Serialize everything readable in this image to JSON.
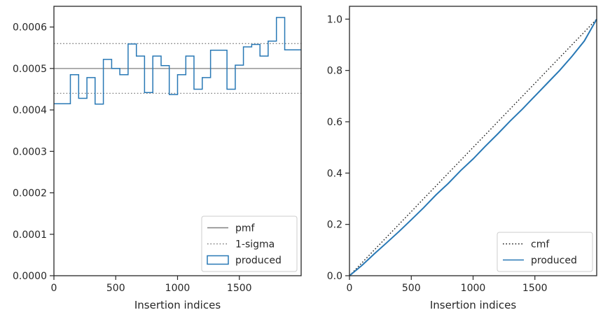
{
  "chart_data": [
    {
      "type": "line",
      "title": "",
      "xlabel": "Insertion indices",
      "ylabel": "",
      "xlim": [
        0,
        2000
      ],
      "ylim": [
        0,
        0.00065
      ],
      "xticks": [
        0,
        500,
        1000,
        1500
      ],
      "xtick_labels": [
        "0",
        "500",
        "1000",
        "1500"
      ],
      "yticks": [
        0.0,
        0.0001,
        0.0002,
        0.0003,
        0.0004,
        0.0005,
        0.0006
      ],
      "ytick_labels": [
        "0.0000",
        "0.0001",
        "0.0002",
        "0.0003",
        "0.0004",
        "0.0005",
        "0.0006"
      ],
      "grid": false,
      "legend_position": "lower-right",
      "series": [
        {
          "name": "pmf",
          "kind": "hline",
          "y": 0.0005,
          "color": "#808080",
          "style": "solid"
        },
        {
          "name": "1-sigma",
          "kind": "hlines",
          "y": [
            0.00044,
            0.00056
          ],
          "color": "#808080",
          "style": "dotted"
        },
        {
          "name": "produced",
          "kind": "step",
          "color": "#2878b5",
          "bin_edges": [
            0,
            133,
            200,
            267,
            333,
            400,
            467,
            533,
            600,
            667,
            733,
            800,
            867,
            933,
            1000,
            1067,
            1133,
            1200,
            1267,
            1333,
            1400,
            1467,
            1533,
            1600,
            1667,
            1733,
            1800,
            1867,
            1933,
            2000
          ],
          "values": [
            0.000415,
            0.000485,
            0.000428,
            0.000478,
            0.000414,
            0.000522,
            0.0005,
            0.000485,
            0.000559,
            0.00053,
            0.000442,
            0.00053,
            0.000507,
            0.000437,
            0.000485,
            0.00053,
            0.00045,
            0.000478,
            0.000544,
            0.000544,
            0.00045,
            0.000508,
            0.000552,
            0.000558,
            0.00053,
            0.000566,
            0.000623,
            0.000545,
            0.000545
          ]
        }
      ]
    },
    {
      "type": "line",
      "title": "",
      "xlabel": "Insertion indices",
      "ylabel": "",
      "xlim": [
        0,
        2000
      ],
      "ylim": [
        0,
        1.05
      ],
      "xticks": [
        0,
        500,
        1000,
        1500
      ],
      "xtick_labels": [
        "0",
        "500",
        "1000",
        "1500"
      ],
      "yticks": [
        0.0,
        0.2,
        0.4,
        0.6,
        0.8,
        1.0
      ],
      "ytick_labels": [
        "0.0",
        "0.2",
        "0.4",
        "0.6",
        "0.8",
        "1.0"
      ],
      "grid": false,
      "legend_position": "lower-right",
      "series": [
        {
          "name": "cmf",
          "kind": "line",
          "color": "#1a1a1a",
          "style": "dotted",
          "x": [
            0,
            2000
          ],
          "y": [
            0,
            1.0
          ]
        },
        {
          "name": "produced",
          "kind": "line",
          "color": "#2878b5",
          "x": [
            0,
            100,
            200,
            300,
            400,
            500,
            600,
            700,
            800,
            900,
            1000,
            1100,
            1200,
            1300,
            1400,
            1500,
            1600,
            1700,
            1800,
            1900,
            2000
          ],
          "y": [
            0,
            0.04,
            0.085,
            0.128,
            0.172,
            0.218,
            0.265,
            0.315,
            0.36,
            0.41,
            0.455,
            0.505,
            0.553,
            0.603,
            0.65,
            0.7,
            0.75,
            0.8,
            0.855,
            0.915,
            1.0
          ]
        }
      ]
    }
  ]
}
